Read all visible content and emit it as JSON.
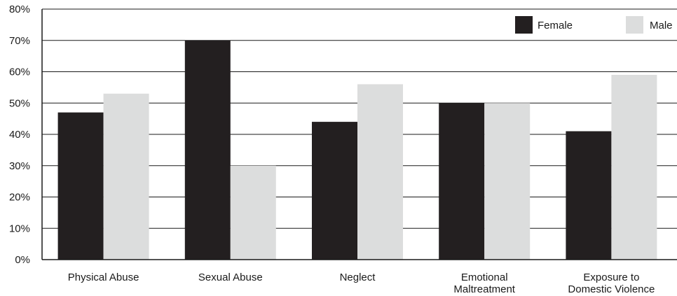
{
  "chart_data": {
    "type": "bar",
    "title": "",
    "xlabel": "",
    "ylabel": "",
    "ylim": [
      0,
      80
    ],
    "y_ticks": [
      {
        "value": 0,
        "label": "0%"
      },
      {
        "value": 10,
        "label": "10%"
      },
      {
        "value": 20,
        "label": "20%"
      },
      {
        "value": 30,
        "label": "30%"
      },
      {
        "value": 40,
        "label": "40%"
      },
      {
        "value": 50,
        "label": "50%"
      },
      {
        "value": 60,
        "label": "60%"
      },
      {
        "value": 70,
        "label": "70%"
      },
      {
        "value": 80,
        "label": "80%"
      }
    ],
    "categories": [
      [
        "Physical Abuse"
      ],
      [
        "Sexual Abuse"
      ],
      [
        "Neglect"
      ],
      [
        "Emotional",
        "Maltreatment"
      ],
      [
        "Exposure to",
        "Domestic Violence"
      ]
    ],
    "series": [
      {
        "name": "Female",
        "color": "#231f20",
        "values": [
          47,
          70,
          44,
          50,
          41
        ]
      },
      {
        "name": "Male",
        "color": "#dcdddd",
        "values": [
          53,
          30,
          56,
          50,
          59
        ]
      }
    ],
    "grid": true,
    "legend_position": "top-right"
  }
}
